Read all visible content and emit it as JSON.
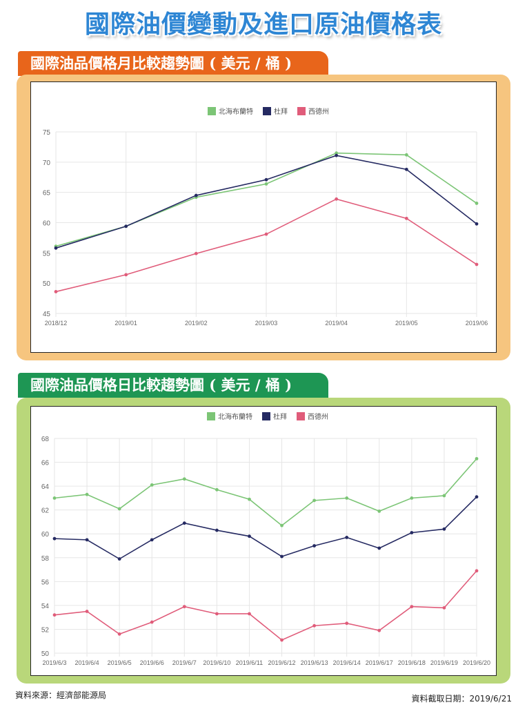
{
  "page": {
    "title": "國際油價變動及進口原油價格表",
    "source": "資料來源：經濟部能源局",
    "retrieved": "資料截取日期：2019/6/21"
  },
  "colors": {
    "brent": "#7cc576",
    "dubai": "#252a62",
    "wti": "#e05c7a",
    "tab_monthly": "#e8651b",
    "tab_daily": "#1e9654",
    "panel_monthly": "#f6c57f",
    "panel_daily": "#b9d77a"
  },
  "chart_data": [
    {
      "type": "line",
      "heading": "國際油品價格月比較趨勢圖 ( 美元 / 桶 )",
      "x": [
        "2018/12",
        "2019/01",
        "2019/02",
        "2019/03",
        "2019/04",
        "2019/05",
        "2019/06"
      ],
      "ylim": [
        45,
        75
      ],
      "yticks": [
        45,
        50,
        55,
        60,
        65,
        70,
        75
      ],
      "grid": true,
      "legend_position": "top-center",
      "series": [
        {
          "name": "北海布蘭特",
          "color": "#7cc576",
          "values": [
            56.1,
            59.4,
            64.2,
            66.4,
            71.5,
            71.2,
            63.2
          ]
        },
        {
          "name": "杜拜",
          "color": "#252a62",
          "values": [
            55.8,
            59.4,
            64.5,
            67.1,
            71.1,
            68.8,
            59.8
          ]
        },
        {
          "name": "西德州",
          "color": "#e05c7a",
          "values": [
            48.6,
            51.4,
            54.9,
            58.1,
            63.9,
            60.7,
            53.1
          ]
        }
      ]
    },
    {
      "type": "line",
      "heading": "國際油品價格日比較趨勢圖 ( 美元 / 桶 )",
      "x": [
        "2019/6/3",
        "2019/6/4",
        "2019/6/5",
        "2019/6/6",
        "2019/6/7",
        "2019/6/10",
        "2019/6/11",
        "2019/6/12",
        "2019/6/13",
        "2019/6/14",
        "2019/6/17",
        "2019/6/18",
        "2019/6/19",
        "2019/6/20"
      ],
      "ylim": [
        50,
        68
      ],
      "yticks": [
        50,
        52,
        54,
        56,
        58,
        60,
        62,
        64,
        66,
        68
      ],
      "grid": true,
      "legend_position": "top-center",
      "series": [
        {
          "name": "北海布蘭特",
          "color": "#7cc576",
          "values": [
            63.0,
            63.3,
            62.1,
            64.1,
            64.6,
            63.7,
            62.9,
            60.7,
            62.8,
            63.0,
            61.9,
            63.0,
            63.2,
            66.3
          ]
        },
        {
          "name": "杜拜",
          "color": "#252a62",
          "values": [
            59.6,
            59.5,
            57.9,
            59.5,
            60.9,
            60.3,
            59.8,
            58.1,
            59.0,
            59.7,
            58.8,
            60.1,
            60.4,
            63.1
          ]
        },
        {
          "name": "西德州",
          "color": "#e05c7a",
          "values": [
            53.2,
            53.5,
            51.6,
            52.6,
            53.9,
            53.3,
            53.3,
            51.1,
            52.3,
            52.5,
            51.9,
            53.9,
            53.8,
            56.9
          ]
        }
      ]
    }
  ]
}
